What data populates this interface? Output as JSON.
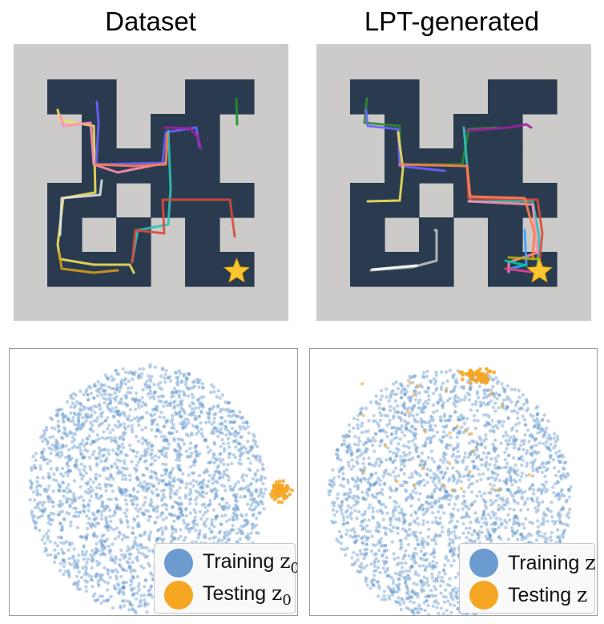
{
  "titles": {
    "left": "Dataset",
    "right": "LPT-generated"
  },
  "colors": {
    "wall": "#cdcbca",
    "floor": "#2a3b50",
    "training": "#6b9bcf",
    "testing": "#f5a623",
    "star": "#fbc531"
  },
  "maze": {
    "rows": 6,
    "cols": 6,
    "open": [
      [
        1,
        1,
        0,
        0,
        1,
        1
      ],
      [
        0,
        1,
        0,
        1,
        1,
        0
      ],
      [
        0,
        1,
        1,
        1,
        1,
        0
      ],
      [
        1,
        1,
        0,
        1,
        1,
        1
      ],
      [
        1,
        0,
        1,
        0,
        1,
        0
      ],
      [
        1,
        1,
        1,
        0,
        1,
        1
      ]
    ],
    "goal": {
      "row": 5,
      "col": 5
    }
  },
  "legends": {
    "left": [
      {
        "label": "Training ",
        "sub": "z",
        "subscript": "0",
        "color_key": "training"
      },
      {
        "label": "Testing ",
        "sub": "z",
        "subscript": "0",
        "color_key": "testing"
      }
    ],
    "right": [
      {
        "label": "Training ",
        "sub": "z",
        "subscript": "",
        "color_key": "training"
      },
      {
        "label": "Testing ",
        "sub": "z",
        "subscript": "",
        "color_key": "testing"
      }
    ]
  }
}
